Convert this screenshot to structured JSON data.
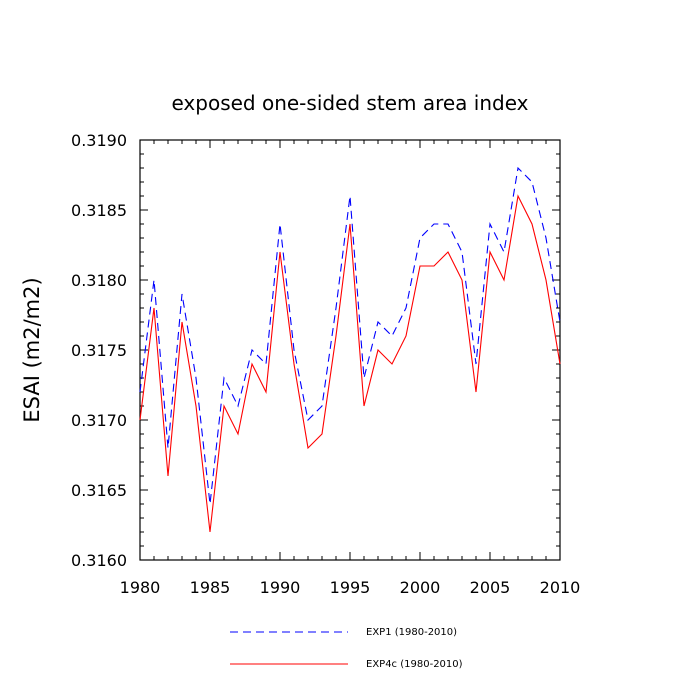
{
  "chart_data": {
    "type": "line",
    "title": "exposed one-sided stem area index",
    "xlabel": "",
    "ylabel": "ESAI  (m2/m2)",
    "xlim": [
      1980,
      2010
    ],
    "ylim": [
      0.316,
      0.319
    ],
    "grid": false,
    "legend_position": "bottom",
    "x": [
      1980,
      1981,
      1982,
      1983,
      1984,
      1985,
      1986,
      1987,
      1988,
      1989,
      1990,
      1991,
      1992,
      1993,
      1994,
      1995,
      1996,
      1997,
      1998,
      1999,
      2000,
      2001,
      2002,
      2003,
      2004,
      2005,
      2006,
      2007,
      2008,
      2009,
      2010
    ],
    "x_ticks": [
      "1980",
      "1985",
      "1990",
      "1995",
      "2000",
      "2005",
      "2010"
    ],
    "y_ticks": [
      "0.3160",
      "0.3165",
      "0.3170",
      "0.3175",
      "0.3180",
      "0.3185",
      "0.3190"
    ],
    "series": [
      {
        "name": "EXP1 (1980-2010)",
        "color": "#0000ff",
        "style": "dashed",
        "values": [
          0.3172,
          0.318,
          0.3168,
          0.3179,
          0.3173,
          0.3164,
          0.3173,
          0.3171,
          0.3175,
          0.3174,
          0.3184,
          0.3175,
          0.317,
          0.3171,
          0.3178,
          0.3186,
          0.3173,
          0.3177,
          0.3176,
          0.3178,
          0.3183,
          0.3184,
          0.3184,
          0.3182,
          0.3174,
          0.3184,
          0.3182,
          0.3188,
          0.3187,
          0.3183,
          0.3177
        ]
      },
      {
        "name": "EXP4c (1980-2010)",
        "color": "#ff0000",
        "style": "solid",
        "values": [
          0.317,
          0.3178,
          0.3166,
          0.3177,
          0.3171,
          0.3162,
          0.3171,
          0.3169,
          0.3174,
          0.3172,
          0.3182,
          0.3174,
          0.3168,
          0.3169,
          0.3176,
          0.3184,
          0.3171,
          0.3175,
          0.3174,
          0.3176,
          0.3181,
          0.3181,
          0.3182,
          0.318,
          0.3172,
          0.3182,
          0.318,
          0.3186,
          0.3184,
          0.318,
          0.3174
        ]
      }
    ]
  }
}
